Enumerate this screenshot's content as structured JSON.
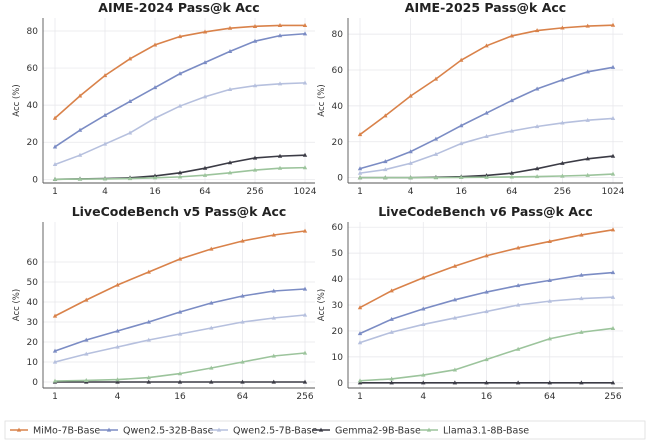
{
  "legend": [
    {
      "name": "MiMo-7B-Base",
      "color": "#d9824a"
    },
    {
      "name": "Qwen2.5-32B-Base",
      "color": "#7b8cc4"
    },
    {
      "name": "Qwen2.5-7B-Base",
      "color": "#b6c0de"
    },
    {
      "name": "Gemma2-9B-Base",
      "color": "#3b3b45"
    },
    {
      "name": "Llama3.1-8B-Base",
      "color": "#9cc49c"
    }
  ],
  "chart_data": [
    {
      "type": "line",
      "title": "AIME-2024 Pass@k Acc",
      "xlabel": "",
      "ylabel": "Acc (%)",
      "xscale": "log2",
      "x": [
        1,
        2,
        4,
        8,
        16,
        32,
        64,
        128,
        256,
        512,
        1024
      ],
      "xticks": [
        1,
        4,
        16,
        64,
        256,
        1024
      ],
      "yticks": [
        0,
        20,
        40,
        60,
        80
      ],
      "ylim": [
        -2,
        87
      ],
      "grid": true,
      "series": [
        {
          "name": "MiMo-7B-Base",
          "values": [
            33,
            45,
            56,
            65,
            72.5,
            77,
            79.5,
            81.5,
            82.5,
            83,
            83
          ]
        },
        {
          "name": "Qwen2.5-32B-Base",
          "values": [
            17.5,
            26.5,
            34.5,
            42,
            49.5,
            57,
            63,
            69,
            74.5,
            77.5,
            78.5
          ]
        },
        {
          "name": "Qwen2.5-7B-Base",
          "values": [
            8,
            13,
            19,
            25,
            33,
            39.5,
            44.5,
            48.5,
            50.5,
            51.5,
            52
          ]
        },
        {
          "name": "Gemma2-9B-Base",
          "values": [
            0,
            0.2,
            0.4,
            0.8,
            1.8,
            3.5,
            6,
            9,
            11.5,
            12.5,
            13
          ]
        },
        {
          "name": "Llama3.1-8B-Base",
          "values": [
            0,
            0.1,
            0.2,
            0.4,
            0.8,
            1.3,
            2.2,
            3.5,
            5,
            6,
            6.3
          ]
        }
      ]
    },
    {
      "type": "line",
      "title": "AIME-2025 Pass@k Acc",
      "xlabel": "",
      "ylabel": "Acc (%)",
      "xscale": "log2",
      "x": [
        1,
        2,
        4,
        8,
        16,
        32,
        64,
        128,
        256,
        512,
        1024
      ],
      "xticks": [
        1,
        4,
        16,
        64,
        256,
        1024
      ],
      "yticks": [
        0,
        20,
        40,
        60,
        80
      ],
      "ylim": [
        -3,
        89
      ],
      "grid": true,
      "series": [
        {
          "name": "MiMo-7B-Base",
          "values": [
            24,
            34.5,
            45.5,
            55,
            65.5,
            73.5,
            79,
            82,
            83.5,
            84.5,
            85
          ]
        },
        {
          "name": "Qwen2.5-32B-Base",
          "values": [
            5,
            9,
            14.5,
            21.5,
            29,
            36,
            43,
            49.5,
            54.5,
            59,
            61.5
          ]
        },
        {
          "name": "Qwen2.5-7B-Base",
          "values": [
            2.5,
            4.5,
            8,
            13,
            19,
            23,
            26,
            28.5,
            30.5,
            32,
            33
          ]
        },
        {
          "name": "Gemma2-9B-Base",
          "values": [
            0,
            0,
            0,
            0.2,
            0.5,
            1.2,
            2.5,
            5,
            8,
            10.5,
            12
          ]
        },
        {
          "name": "Llama3.1-8B-Base",
          "values": [
            0,
            0,
            0,
            0,
            0.1,
            0.2,
            0.4,
            0.6,
            0.9,
            1.3,
            2
          ]
        }
      ]
    },
    {
      "type": "line",
      "title": "LiveCodeBench v5 Pass@k Acc",
      "xlabel": "",
      "ylabel": "Acc (%)",
      "xscale": "log2",
      "x": [
        1,
        2,
        4,
        8,
        16,
        32,
        64,
        128,
        256
      ],
      "xticks": [
        1,
        4,
        16,
        64,
        256
      ],
      "yticks": [
        0,
        10,
        20,
        30,
        40,
        50,
        60
      ],
      "ylim": [
        -3,
        80
      ],
      "grid": true,
      "series": [
        {
          "name": "MiMo-7B-Base",
          "values": [
            33,
            41,
            48.5,
            55,
            61.5,
            66.5,
            70.5,
            73.5,
            75.5
          ]
        },
        {
          "name": "Qwen2.5-32B-Base",
          "values": [
            15.5,
            21,
            25.5,
            30,
            35,
            39.5,
            43,
            45.5,
            46.5
          ]
        },
        {
          "name": "Qwen2.5-7B-Base",
          "values": [
            10,
            14,
            17.5,
            21,
            24,
            27,
            30,
            32,
            33.5
          ]
        },
        {
          "name": "Gemma2-9B-Base",
          "values": [
            0,
            0,
            0,
            0,
            0,
            0,
            0,
            0,
            0
          ]
        },
        {
          "name": "Llama3.1-8B-Base",
          "values": [
            0.5,
            0.8,
            1.2,
            2.2,
            4.2,
            7,
            10,
            13,
            14.5
          ]
        }
      ]
    },
    {
      "type": "line",
      "title": "LiveCodeBench v6 Pass@k Acc",
      "xlabel": "",
      "ylabel": "Acc (%)",
      "xscale": "log2",
      "x": [
        1,
        2,
        4,
        8,
        16,
        32,
        64,
        128,
        256
      ],
      "xticks": [
        1,
        4,
        16,
        64,
        256
      ],
      "yticks": [
        0,
        10,
        20,
        30,
        40,
        50,
        60
      ],
      "ylim": [
        -2,
        62
      ],
      "grid": true,
      "series": [
        {
          "name": "MiMo-7B-Base",
          "values": [
            29,
            35.5,
            40.5,
            45,
            49,
            52,
            54.5,
            57,
            59
          ]
        },
        {
          "name": "Qwen2.5-32B-Base",
          "values": [
            19,
            24.5,
            28.5,
            32,
            35,
            37.5,
            39.5,
            41.5,
            42.5
          ]
        },
        {
          "name": "Qwen2.5-7B-Base",
          "values": [
            15.5,
            19.5,
            22.5,
            25,
            27.5,
            30,
            31.5,
            32.5,
            33
          ]
        },
        {
          "name": "Gemma2-9B-Base",
          "values": [
            0,
            0,
            0,
            0,
            0,
            0,
            0,
            0,
            0
          ]
        },
        {
          "name": "Llama3.1-8B-Base",
          "values": [
            0.8,
            1.5,
            3,
            5,
            9,
            13,
            17,
            19.5,
            21
          ]
        }
      ]
    }
  ]
}
